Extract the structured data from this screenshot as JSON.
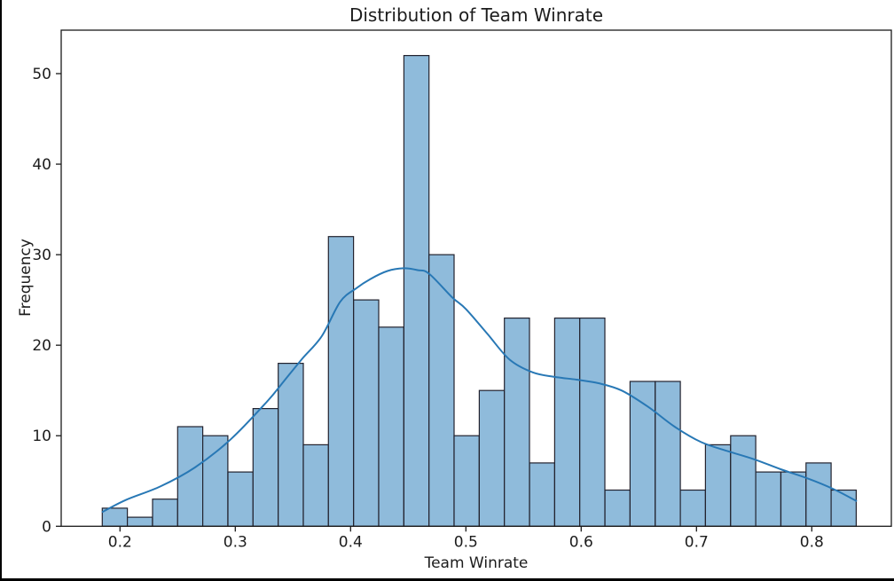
{
  "window": {
    "frame_color": "#000000",
    "figure_background": "#ffffff"
  },
  "chart_data": {
    "type": "histogram",
    "title": "Distribution of Team Winrate",
    "xlabel": "Team Winrate",
    "ylabel": "Frequency",
    "grid": false,
    "legend": "none",
    "xlim": [
      0.149,
      0.869
    ],
    "ylim": [
      0,
      54.8
    ],
    "bins": {
      "start": 0.1846,
      "width": 0.0218,
      "count": 30
    },
    "frequencies": [
      2,
      1,
      3,
      11,
      10,
      6,
      13,
      18,
      9,
      32,
      25,
      22,
      52,
      30,
      10,
      15,
      23,
      7,
      23,
      23,
      4,
      16,
      16,
      4,
      9,
      10,
      6,
      6,
      7,
      4
    ],
    "total_observations": 417,
    "max_frequency": 52,
    "xticks": [
      {
        "value": 0.2,
        "label": "0.2"
      },
      {
        "value": 0.3,
        "label": "0.3"
      },
      {
        "value": 0.4,
        "label": "0.4"
      },
      {
        "value": 0.5,
        "label": "0.5"
      },
      {
        "value": 0.6,
        "label": "0.6"
      },
      {
        "value": 0.7,
        "label": "0.7"
      },
      {
        "value": 0.8,
        "label": "0.8"
      }
    ],
    "yticks": [
      {
        "value": 0,
        "label": "0"
      },
      {
        "value": 10,
        "label": "10"
      },
      {
        "value": 20,
        "label": "20"
      },
      {
        "value": 30,
        "label": "30"
      },
      {
        "value": 40,
        "label": "40"
      },
      {
        "value": 50,
        "label": "50"
      }
    ],
    "kde_curve": [
      [
        0.185,
        1.6
      ],
      [
        0.205,
        2.9
      ],
      [
        0.235,
        4.4
      ],
      [
        0.265,
        6.5
      ],
      [
        0.296,
        9.6
      ],
      [
        0.327,
        13.7
      ],
      [
        0.342,
        16.0
      ],
      [
        0.358,
        18.5
      ],
      [
        0.375,
        21.0
      ],
      [
        0.391,
        24.8
      ],
      [
        0.405,
        26.3
      ],
      [
        0.417,
        27.3
      ],
      [
        0.432,
        28.2
      ],
      [
        0.446,
        28.5
      ],
      [
        0.458,
        28.3
      ],
      [
        0.468,
        27.9
      ],
      [
        0.488,
        25.3
      ],
      [
        0.5,
        24.0
      ],
      [
        0.519,
        21.2
      ],
      [
        0.538,
        18.4
      ],
      [
        0.558,
        17.0
      ],
      [
        0.577,
        16.5
      ],
      [
        0.596,
        16.2
      ],
      [
        0.615,
        15.8
      ],
      [
        0.635,
        15.0
      ],
      [
        0.658,
        13.2
      ],
      [
        0.681,
        11.0
      ],
      [
        0.704,
        9.3
      ],
      [
        0.727,
        8.3
      ],
      [
        0.75,
        7.4
      ],
      [
        0.773,
        6.3
      ],
      [
        0.796,
        5.3
      ],
      [
        0.819,
        4.1
      ],
      [
        0.8385,
        2.8
      ]
    ],
    "colors": {
      "bar_fill": "#8fbbdb",
      "bar_edge": "#22222e",
      "kde_line": "#2878b5",
      "axis": "#1a1a1a",
      "text": "#1c1c1c"
    }
  }
}
